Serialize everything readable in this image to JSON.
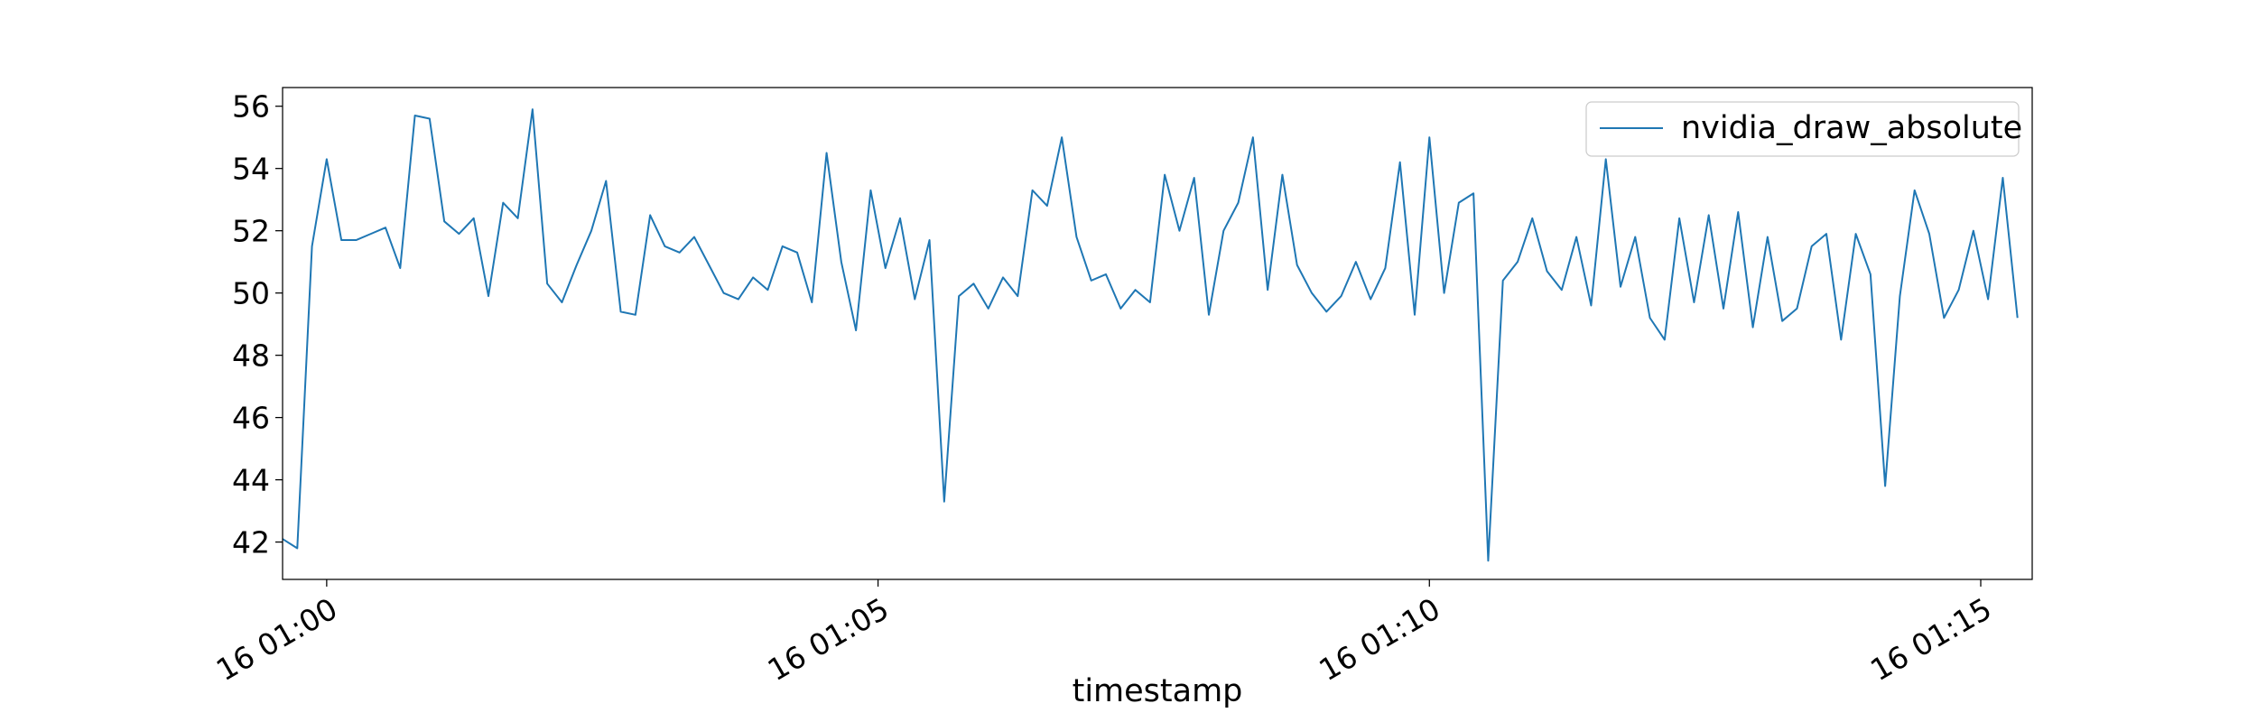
{
  "chart_data": {
    "type": "line",
    "xlabel": "timestamp",
    "ylabel": "",
    "title": "",
    "x_start": "16 00:59:36",
    "x_step_seconds": 8,
    "x_ticks": [
      "16 01:00",
      "16 01:05",
      "16 01:10",
      "16 01:15"
    ],
    "xlim": [
      "16 00:59:36",
      "16 01:15:28"
    ],
    "y_ticks": [
      "42",
      "44",
      "46",
      "48",
      "50",
      "52",
      "54",
      "56"
    ],
    "ylim": [
      40.8,
      56.6
    ],
    "grid": false,
    "legend_position": "top-right",
    "series": [
      {
        "name": "nvidia_draw_absolute",
        "color": "#1f77b4",
        "values": [
          42.1,
          41.8,
          51.5,
          54.3,
          51.7,
          51.7,
          51.9,
          52.1,
          50.8,
          55.7,
          55.6,
          52.3,
          51.9,
          52.4,
          49.9,
          52.9,
          52.4,
          55.9,
          50.3,
          49.7,
          50.9,
          52.0,
          53.6,
          49.4,
          49.3,
          52.5,
          51.5,
          51.3,
          51.8,
          50.9,
          50.0,
          49.8,
          50.5,
          50.1,
          51.5,
          51.3,
          49.7,
          54.5,
          51.0,
          48.8,
          53.3,
          50.8,
          52.4,
          49.8,
          51.7,
          43.3,
          49.9,
          50.3,
          49.5,
          50.5,
          49.9,
          53.3,
          52.8,
          55.0,
          51.8,
          50.4,
          50.6,
          49.5,
          50.1,
          49.7,
          53.8,
          52.0,
          53.7,
          49.3,
          52.0,
          52.9,
          55.0,
          50.1,
          53.8,
          50.9,
          50.0,
          49.4,
          49.9,
          51.0,
          49.8,
          50.8,
          54.2,
          49.3,
          55.0,
          50.0,
          52.9,
          53.2,
          41.4,
          50.4,
          51.0,
          52.4,
          50.7,
          50.1,
          51.8,
          49.6,
          54.3,
          50.2,
          51.8,
          49.2,
          48.5,
          52.4,
          49.7,
          52.5,
          49.5,
          52.6,
          48.9,
          51.8,
          49.1,
          49.5,
          51.5,
          51.9,
          48.5,
          51.9,
          50.6,
          43.8,
          49.9,
          53.3,
          51.9,
          49.2,
          50.1,
          52.0,
          49.8,
          53.7,
          49.2
        ]
      }
    ]
  }
}
